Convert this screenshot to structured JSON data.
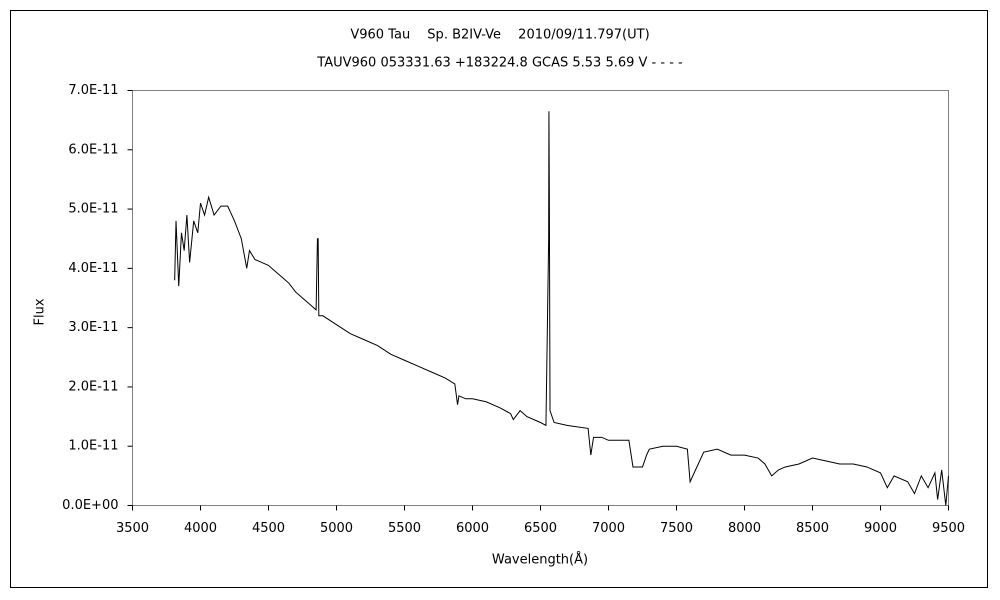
{
  "chart_data": {
    "type": "line",
    "title": "V960 Tau　 Sp. B2IV-Ve　 2010/09/11.797(UT)",
    "subtitle": "TAUV960 053331.63 +183224.8 GCAS 5.53 5.69 V - - - -",
    "x_label": "Wavelength(Å)",
    "y_label": "Flux",
    "color": "#000000",
    "grid": false,
    "xlim": [
      3500,
      9500
    ],
    "xticks": [
      3500,
      4000,
      4500,
      5000,
      5500,
      6000,
      6500,
      7000,
      7500,
      8000,
      8500,
      9000,
      9500
    ],
    "ylim": [
      0,
      7e-11
    ],
    "yticks": [
      {
        "value": 0,
        "label": "0.0E+00"
      },
      {
        "value": 1e-11,
        "label": "1.0E-11"
      },
      {
        "value": 2e-11,
        "label": "2.0E-11"
      },
      {
        "value": 3e-11,
        "label": "3.0E-11"
      },
      {
        "value": 4e-11,
        "label": "4.0E-11"
      },
      {
        "value": 5e-11,
        "label": "5.0E-11"
      },
      {
        "value": 6e-11,
        "label": "6.0E-11"
      },
      {
        "value": 7e-11,
        "label": "7.0E-11"
      }
    ],
    "x": [
      3810,
      3820,
      3840,
      3860,
      3880,
      3900,
      3920,
      3950,
      3980,
      4000,
      4030,
      4060,
      4100,
      4150,
      4200,
      4250,
      4300,
      4340,
      4360,
      4400,
      4450,
      4500,
      4550,
      4600,
      4650,
      4700,
      4750,
      4800,
      4850,
      4860,
      4865,
      4870,
      4900,
      5000,
      5100,
      5200,
      5300,
      5400,
      5500,
      5600,
      5700,
      5800,
      5870,
      5890,
      5900,
      5950,
      6000,
      6100,
      6200,
      6280,
      6300,
      6350,
      6400,
      6500,
      6540,
      6560,
      6562,
      6565,
      6570,
      6600,
      6700,
      6850,
      6870,
      6890,
      6950,
      7000,
      7100,
      7150,
      7180,
      7250,
      7280,
      7300,
      7400,
      7500,
      7580,
      7600,
      7630,
      7700,
      7800,
      7900,
      8000,
      8100,
      8150,
      8200,
      8250,
      8300,
      8400,
      8500,
      8600,
      8700,
      8800,
      8900,
      9000,
      9050,
      9100,
      9200,
      9250,
      9300,
      9350,
      9400,
      9420,
      9450,
      9480,
      9500
    ],
    "values": [
      3.8e-11,
      4.8e-11,
      3.7e-11,
      4.6e-11,
      4.3e-11,
      4.9e-11,
      4.1e-11,
      4.8e-11,
      4.6e-11,
      5.1e-11,
      4.9e-11,
      5.2e-11,
      4.9e-11,
      5.05e-11,
      5.05e-11,
      4.8e-11,
      4.5e-11,
      4e-11,
      4.3e-11,
      4.15e-11,
      4.1e-11,
      4.05e-11,
      3.95e-11,
      3.85e-11,
      3.75e-11,
      3.6e-11,
      3.5e-11,
      3.4e-11,
      3.3e-11,
      4.5e-11,
      4.5e-11,
      3.2e-11,
      3.2e-11,
      3.05e-11,
      2.9e-11,
      2.8e-11,
      2.7e-11,
      2.55e-11,
      2.45e-11,
      2.35e-11,
      2.25e-11,
      2.15e-11,
      2.05e-11,
      1.7e-11,
      1.85e-11,
      1.8e-11,
      1.8e-11,
      1.75e-11,
      1.65e-11,
      1.55e-11,
      1.45e-11,
      1.6e-11,
      1.5e-11,
      1.4e-11,
      1.35e-11,
      4.5e-11,
      6.65e-11,
      5.2e-11,
      1.6e-11,
      1.4e-11,
      1.35e-11,
      1.3e-11,
      8.5e-12,
      1.15e-11,
      1.15e-11,
      1.1e-11,
      1.1e-11,
      1.1e-11,
      6.5e-12,
      6.5e-12,
      8.5e-12,
      9.5e-12,
      1e-11,
      1e-11,
      9.5e-12,
      4e-12,
      5.5e-12,
      9e-12,
      9.5e-12,
      8.5e-12,
      8.5e-12,
      8e-12,
      7e-12,
      5e-12,
      6e-12,
      6.5e-12,
      7e-12,
      8e-12,
      7.5e-12,
      7e-12,
      7e-12,
      6.5e-12,
      5.5e-12,
      3e-12,
      5e-12,
      4e-12,
      2e-12,
      5e-12,
      3e-12,
      5.5e-12,
      1e-12,
      6e-12,
      0,
      5e-12
    ]
  }
}
